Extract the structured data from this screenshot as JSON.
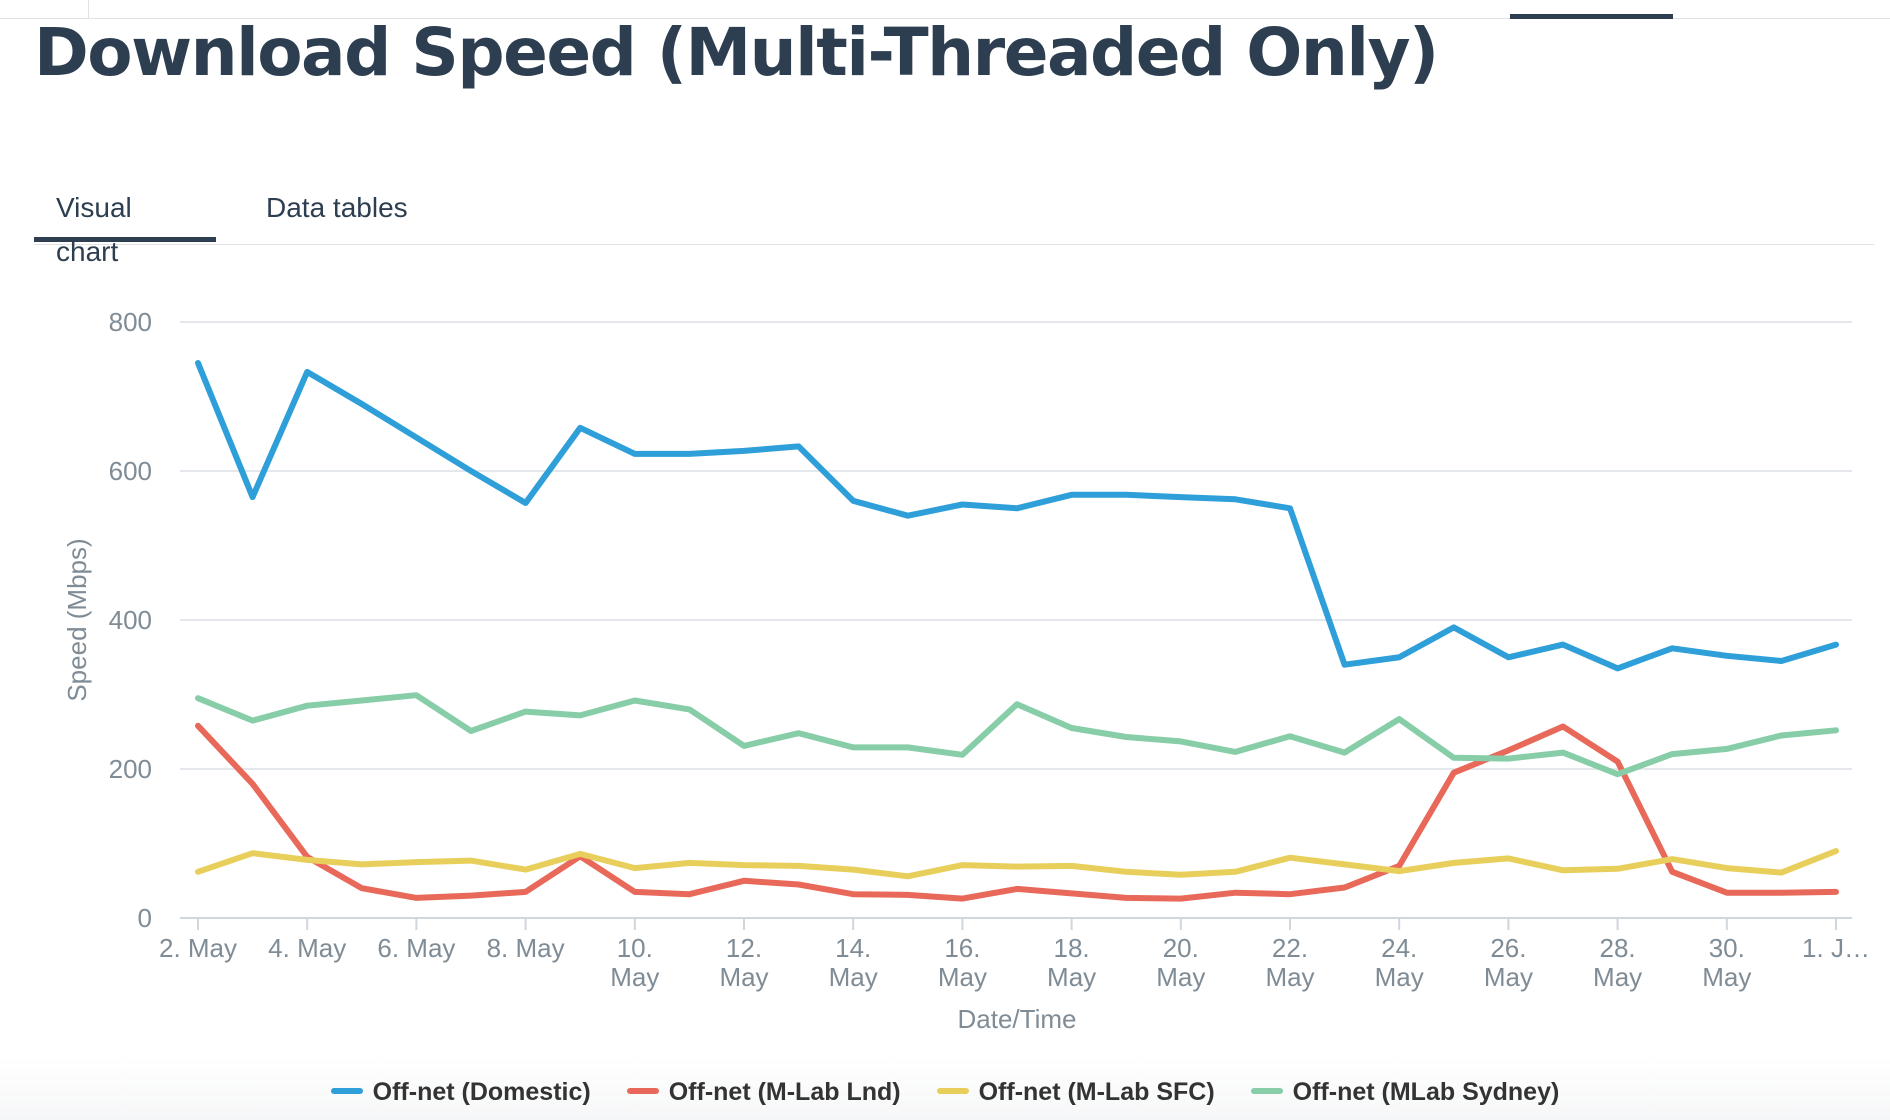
{
  "page": {
    "title": "Download Speed (Multi-Threaded Only)",
    "tabs": [
      {
        "label": "Visual chart",
        "active": true
      },
      {
        "label": "Data tables",
        "active": false
      }
    ]
  },
  "chart_data": {
    "type": "line",
    "title": "",
    "xlabel": "Date/Time",
    "ylabel": "Speed (Mbps)",
    "ylim": [
      0,
      800
    ],
    "yticks": [
      0,
      200,
      400,
      600,
      800
    ],
    "grid": true,
    "legend_placement": "bottom-center",
    "x": [
      "2. May",
      "3. May",
      "4. May",
      "5. May",
      "6. May",
      "7. May",
      "8. May",
      "9. May",
      "10. May",
      "11. May",
      "12. May",
      "13. May",
      "14. May",
      "15. May",
      "16. May",
      "17. May",
      "18. May",
      "19. May",
      "20. May",
      "21. May",
      "22. May",
      "23. May",
      "24. May",
      "25. May",
      "26. May",
      "27. May",
      "28. May",
      "29. May",
      "30. May",
      "31. May",
      "1. Jun"
    ],
    "xtick_labels": [
      {
        "index": 0,
        "lines": [
          "2. May"
        ]
      },
      {
        "index": 2,
        "lines": [
          "4. May"
        ]
      },
      {
        "index": 4,
        "lines": [
          "6. May"
        ]
      },
      {
        "index": 6,
        "lines": [
          "8. May"
        ]
      },
      {
        "index": 8,
        "lines": [
          "10.",
          "May"
        ]
      },
      {
        "index": 10,
        "lines": [
          "12.",
          "May"
        ]
      },
      {
        "index": 12,
        "lines": [
          "14.",
          "May"
        ]
      },
      {
        "index": 14,
        "lines": [
          "16.",
          "May"
        ]
      },
      {
        "index": 16,
        "lines": [
          "18.",
          "May"
        ]
      },
      {
        "index": 18,
        "lines": [
          "20.",
          "May"
        ]
      },
      {
        "index": 20,
        "lines": [
          "22.",
          "May"
        ]
      },
      {
        "index": 22,
        "lines": [
          "24.",
          "May"
        ]
      },
      {
        "index": 24,
        "lines": [
          "26.",
          "May"
        ]
      },
      {
        "index": 26,
        "lines": [
          "28.",
          "May"
        ]
      },
      {
        "index": 28,
        "lines": [
          "30.",
          "May"
        ]
      },
      {
        "index": 30,
        "lines": [
          "1. J…"
        ]
      }
    ],
    "series": [
      {
        "name": "Off-net (Domestic)",
        "color": "#2e9fd8",
        "values": [
          745,
          565,
          733,
          690,
          645,
          600,
          557,
          658,
          623,
          623,
          627,
          633,
          560,
          540,
          555,
          550,
          568,
          568,
          565,
          562,
          550,
          340,
          350,
          390,
          350,
          367,
          335,
          362,
          352,
          345,
          367
        ]
      },
      {
        "name": "Off-net (M-Lab Lnd)",
        "color": "#e8695a",
        "values": [
          258,
          180,
          82,
          40,
          27,
          30,
          35,
          83,
          35,
          32,
          50,
          45,
          32,
          31,
          26,
          39,
          33,
          27,
          26,
          34,
          32,
          41,
          70,
          195,
          225,
          257,
          210,
          62,
          34,
          34,
          35
        ]
      },
      {
        "name": "Off-net (M-Lab SFC)",
        "color": "#e8cf5b",
        "values": [
          62,
          87,
          78,
          72,
          75,
          77,
          65,
          86,
          67,
          74,
          71,
          70,
          65,
          56,
          71,
          69,
          70,
          62,
          58,
          62,
          81,
          72,
          63,
          74,
          80,
          64,
          66,
          79,
          67,
          61,
          90
        ]
      },
      {
        "name": "Off-net (MLab Sydney)",
        "color": "#86cda8",
        "values": [
          295,
          265,
          285,
          292,
          299,
          251,
          277,
          272,
          292,
          280,
          231,
          248,
          229,
          229,
          219,
          287,
          255,
          243,
          237,
          223,
          244,
          222,
          267,
          215,
          214,
          222,
          193,
          220,
          227,
          245,
          252
        ]
      }
    ]
  }
}
